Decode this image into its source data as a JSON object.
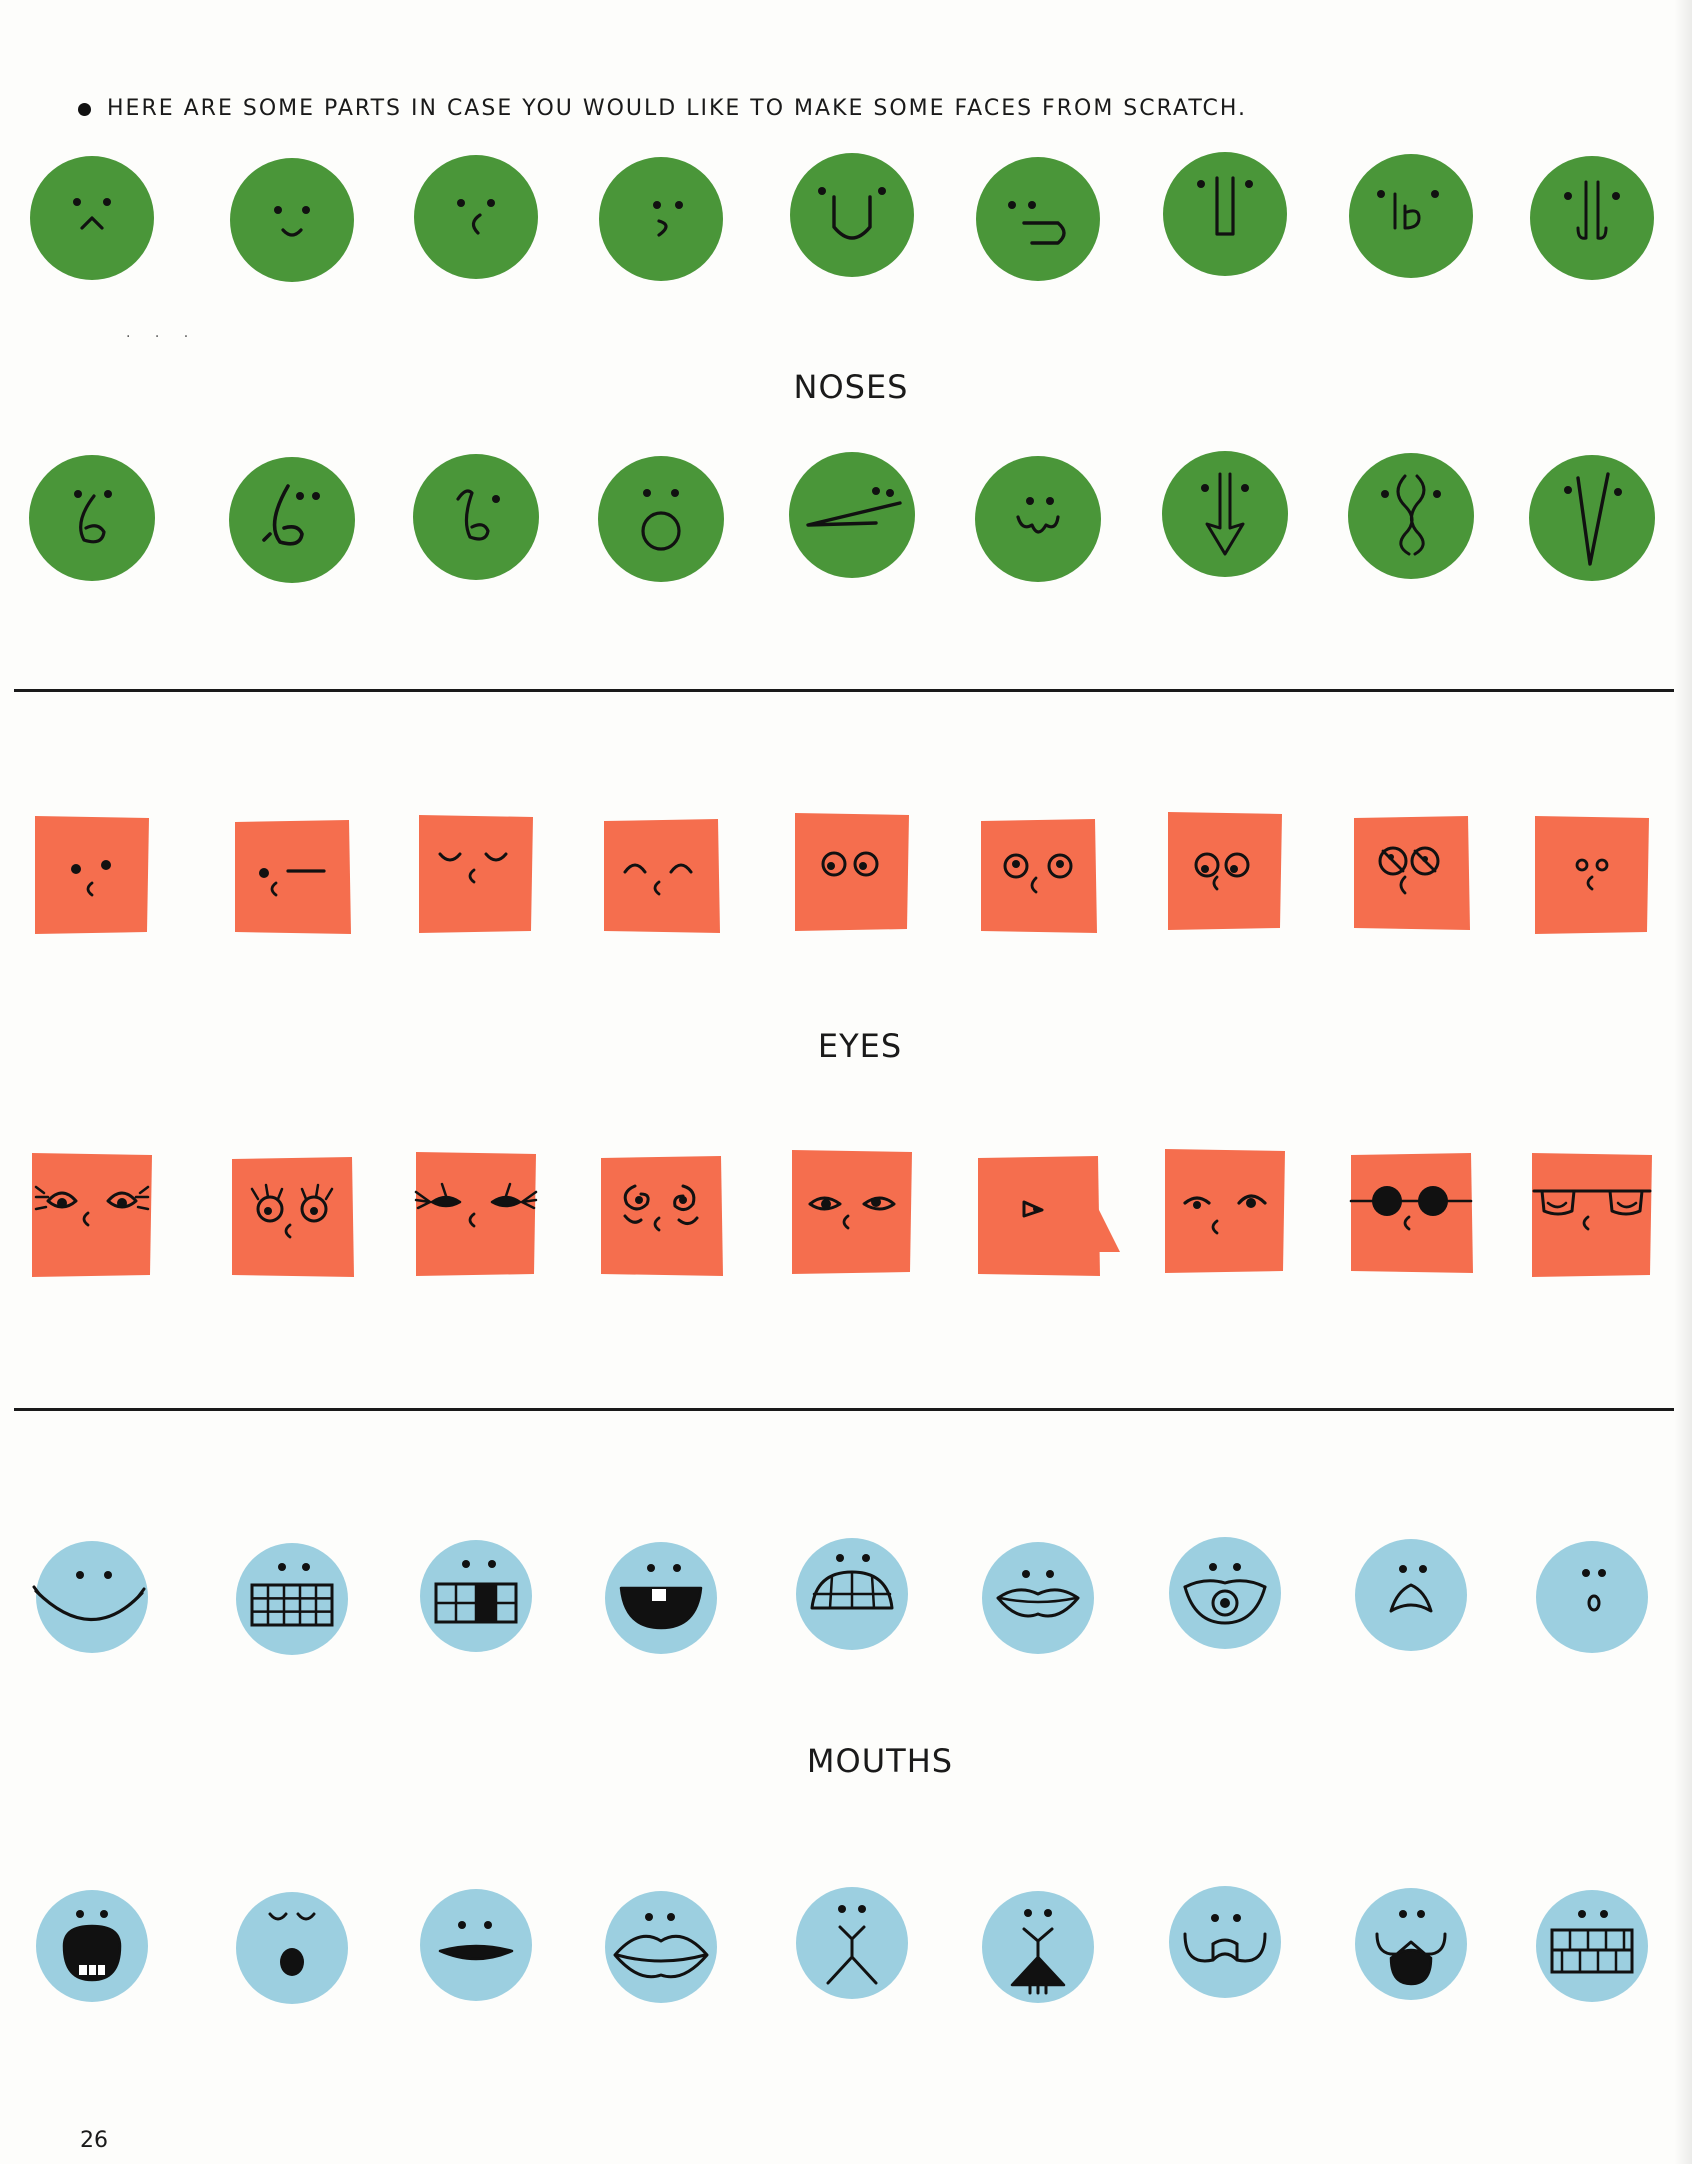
{
  "intro": {
    "text": "Here are some parts in case you would like to make some faces from scratch."
  },
  "sections": {
    "noses": {
      "label": "NOSES"
    },
    "eyes": {
      "label": "EYES"
    },
    "mouths": {
      "label": "MOUTHS"
    }
  },
  "page_number": "26",
  "colors": {
    "green": "#4a9639",
    "red": "#f56e4e",
    "blue": "#9ccfe0",
    "ink": "#111111"
  },
  "rows": [
    {
      "kind": "circle",
      "color": "green",
      "items": [
        "nose-caret",
        "nose-hook-small",
        "nose-c",
        "nose-backward-hook",
        "nose-u",
        "nose-hook-large",
        "nose-long-bar",
        "nose-nostrils",
        "nose-column"
      ]
    },
    {
      "kind": "circle",
      "color": "green",
      "items": [
        "nose-six",
        "nose-six-bold",
        "nose-six-curly",
        "nose-ring",
        "nose-pointed-long",
        "nose-bulb",
        "nose-arrow",
        "nose-squiggle",
        "nose-v"
      ]
    },
    {
      "kind": "square",
      "color": "red",
      "items": [
        "eyes-dots",
        "eyes-wink",
        "eyes-closed",
        "eyes-arched",
        "eyes-round",
        "eyes-round-wide",
        "eyes-round-close",
        "eyes-crossed",
        "eyes-small"
      ]
    },
    {
      "kind": "square",
      "color": "red",
      "items": [
        "eyes-lashes",
        "eyes-lashes-up",
        "eyes-lashes-long",
        "eyes-swirl",
        "eyes-almond",
        "eyes-profile",
        "eyes-arched-pupils",
        "eyes-sunglasses",
        "eyes-glasses"
      ]
    },
    {
      "kind": "circle",
      "color": "blue",
      "items": [
        "mouth-smile",
        "mouth-grin-teeth",
        "mouth-grin-missing-tooth",
        "mouth-tooth",
        "mouth-clenched",
        "mouth-lips",
        "mouth-tongue",
        "mouth-pout",
        "mouth-o-small"
      ]
    },
    {
      "kind": "circle",
      "color": "blue",
      "items": [
        "mouth-open-teeth",
        "mouth-yawn",
        "mouth-flat",
        "mouth-lips-full",
        "mouth-y",
        "mouth-y-teeth",
        "mouth-cat",
        "mouth-cat-open",
        "mouth-teeth-rows"
      ]
    }
  ]
}
